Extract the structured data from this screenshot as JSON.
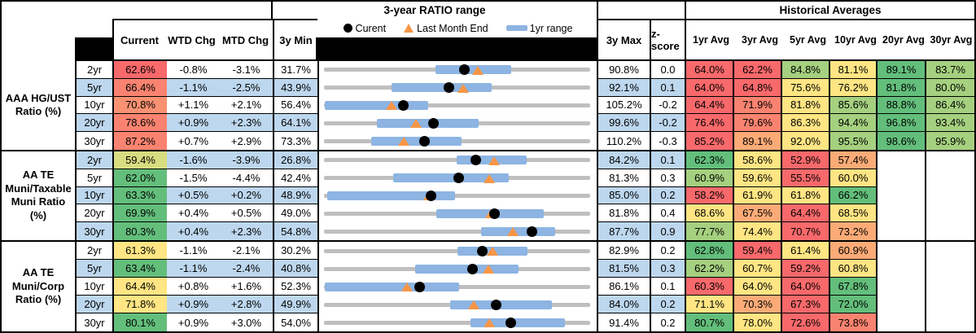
{
  "header": {
    "range_band": "3-year RATIO range",
    "averages_band": "Historical Averages"
  },
  "columns": {
    "current": "Current",
    "wtd": "WTD Chg",
    "mtd": "MTD Chg",
    "min": "3y Min",
    "max": "3y Max",
    "z": "z-score",
    "avgs": [
      "1yr Avg",
      "3yr Avg",
      "5yr Avg",
      "10yr Avg",
      "20yr Avg",
      "30yr Avg"
    ]
  },
  "legend": {
    "current": "Curent",
    "last_month": "Last Month End",
    "range": "1yr range"
  },
  "palette": {
    "R": "#f8696b",
    "RO": "#f98370",
    "SO": "#f99272",
    "O": "#fcab77",
    "Y": "#ffe583",
    "YG": "#d8dd81",
    "LG": "#a5d07f",
    "G": "#63be7b",
    "stripe": "#bdd7ee",
    "range_bar": "#8db4e2",
    "track": "#bfbfbf",
    "triangle": "#f79646",
    "dot": "#000000"
  },
  "groups": [
    {
      "label_lines": [
        "AAA HG/UST",
        "Ratio (%)"
      ],
      "rows": [
        {
          "tenor": "2yr",
          "cur": 62.6,
          "curc": "R",
          "wtd": -0.8,
          "mtd": -3.1,
          "min": 31.7,
          "max": 90.8,
          "z": "0.0",
          "band": [
            56.3,
            73.1
          ],
          "avgs": [
            [
              64.0,
              "R"
            ],
            [
              62.2,
              "R"
            ],
            [
              84.8,
              "LG"
            ],
            [
              81.1,
              "Y"
            ],
            [
              89.1,
              "G"
            ],
            [
              83.7,
              "LG"
            ]
          ]
        },
        {
          "tenor": "5yr",
          "cur": 66.4,
          "curc": "RO",
          "wtd": -1.1,
          "mtd": -2.5,
          "min": 43.9,
          "max": 92.1,
          "z": "0.1",
          "band": [
            56.0,
            74.1
          ],
          "avgs": [
            [
              64.0,
              "R"
            ],
            [
              64.8,
              "R"
            ],
            [
              75.6,
              "Y"
            ],
            [
              76.2,
              "Y"
            ],
            [
              81.8,
              "G"
            ],
            [
              80.0,
              "LG"
            ]
          ]
        },
        {
          "tenor": "10yr",
          "cur": 70.8,
          "curc": "SO",
          "wtd": 1.1,
          "mtd": 2.1,
          "min": 56.4,
          "max": 105.2,
          "z": "-0.2",
          "band": [
            56.5,
            75.4
          ],
          "avgs": [
            [
              64.4,
              "R"
            ],
            [
              71.9,
              "RO"
            ],
            [
              81.8,
              "Y"
            ],
            [
              85.6,
              "LG"
            ],
            [
              88.8,
              "G"
            ],
            [
              86.4,
              "LG"
            ]
          ]
        },
        {
          "tenor": "20yr",
          "cur": 78.6,
          "curc": "RO",
          "wtd": 0.9,
          "mtd": 2.3,
          "min": 64.1,
          "max": 99.6,
          "z": "-0.2",
          "band": [
            71.1,
            84.6
          ],
          "avgs": [
            [
              76.4,
              "R"
            ],
            [
              79.6,
              "RO"
            ],
            [
              86.3,
              "Y"
            ],
            [
              94.4,
              "LG"
            ],
            [
              96.8,
              "G"
            ],
            [
              93.4,
              "LG"
            ]
          ]
        },
        {
          "tenor": "30yr",
          "cur": 87.2,
          "curc": "RO",
          "wtd": 0.7,
          "mtd": 2.9,
          "min": 73.3,
          "max": 110.2,
          "z": "-0.3",
          "band": [
            79.8,
            92.2
          ],
          "avgs": [
            [
              85.2,
              "R"
            ],
            [
              89.1,
              "O"
            ],
            [
              92.0,
              "Y"
            ],
            [
              95.5,
              "LG"
            ],
            [
              98.6,
              "G"
            ],
            [
              95.9,
              "LG"
            ]
          ]
        }
      ]
    },
    {
      "label_lines": [
        "AA TE",
        "Muni/Taxable",
        "Muni Ratio",
        "(%)"
      ],
      "rows": [
        {
          "tenor": "2yr",
          "cur": 59.4,
          "curc": "YG",
          "wtd": -1.6,
          "mtd": -3.9,
          "min": 26.8,
          "max": 84.2,
          "z": "0.1",
          "band": [
            55.3,
            70.2
          ],
          "avgs": [
            [
              62.3,
              "G"
            ],
            [
              58.6,
              "Y"
            ],
            [
              52.9,
              "R"
            ],
            [
              57.4,
              "O"
            ],
            null,
            null
          ]
        },
        {
          "tenor": "5yr",
          "cur": 62.0,
          "curc": "G",
          "wtd": -1.5,
          "mtd": -4.4,
          "min": 42.4,
          "max": 81.3,
          "z": "0.3",
          "band": [
            52.4,
            69.3
          ],
          "avgs": [
            [
              60.9,
              "LG"
            ],
            [
              59.6,
              "Y"
            ],
            [
              55.5,
              "R"
            ],
            [
              60.0,
              "Y"
            ],
            null,
            null
          ]
        },
        {
          "tenor": "10yr",
          "cur": 63.3,
          "curc": "G",
          "wtd": 0.5,
          "mtd": 0.2,
          "min": 48.9,
          "max": 85.0,
          "z": "0.2",
          "band": [
            49.3,
            66.6
          ],
          "avgs": [
            [
              58.2,
              "R"
            ],
            [
              61.9,
              "Y"
            ],
            [
              61.8,
              "Y"
            ],
            [
              66.2,
              "G"
            ],
            null,
            null
          ]
        },
        {
          "tenor": "20yr",
          "cur": 69.9,
          "curc": "G",
          "wtd": 0.4,
          "mtd": 0.5,
          "min": 49.0,
          "max": 81.8,
          "z": "0.4",
          "band": [
            62.8,
            75.9
          ],
          "avgs": [
            [
              68.6,
              "Y"
            ],
            [
              67.5,
              "O"
            ],
            [
              64.4,
              "R"
            ],
            [
              68.5,
              "Y"
            ],
            null,
            null
          ]
        },
        {
          "tenor": "30yr",
          "cur": 80.3,
          "curc": "G",
          "wtd": 0.4,
          "mtd": 2.3,
          "min": 54.8,
          "max": 87.7,
          "z": "0.9",
          "band": [
            74.1,
            83.2
          ],
          "avgs": [
            [
              77.7,
              "LG"
            ],
            [
              74.4,
              "Y"
            ],
            [
              70.7,
              "R"
            ],
            [
              73.2,
              "O"
            ],
            null,
            null
          ]
        }
      ]
    },
    {
      "label_lines": [
        "AA TE",
        "Muni/Corp",
        "Ratio (%)"
      ],
      "rows": [
        {
          "tenor": "2yr",
          "cur": 61.3,
          "curc": "Y",
          "wtd": -1.1,
          "mtd": -2.1,
          "min": 30.2,
          "max": 82.9,
          "z": "0.2",
          "band": [
            56.4,
            70.3
          ],
          "avgs": [
            [
              62.8,
              "G"
            ],
            [
              59.4,
              "R"
            ],
            [
              61.4,
              "Y"
            ],
            [
              60.9,
              "O"
            ],
            null,
            null
          ]
        },
        {
          "tenor": "5yr",
          "cur": 63.4,
          "curc": "G",
          "wtd": -1.1,
          "mtd": -2.4,
          "min": 40.8,
          "max": 81.5,
          "z": "0.3",
          "band": [
            54.6,
            70.4
          ],
          "avgs": [
            [
              62.2,
              "LG"
            ],
            [
              60.7,
              "Y"
            ],
            [
              59.2,
              "R"
            ],
            [
              60.8,
              "Y"
            ],
            null,
            null
          ]
        },
        {
          "tenor": "10yr",
          "cur": 64.4,
          "curc": "Y",
          "wtd": 0.8,
          "mtd": 1.6,
          "min": 52.3,
          "max": 86.1,
          "z": "0.1",
          "band": [
            52.4,
            69.4
          ],
          "avgs": [
            [
              60.3,
              "R"
            ],
            [
              64.0,
              "Y"
            ],
            [
              64.0,
              "R"
            ],
            [
              67.8,
              "G"
            ],
            null,
            null
          ]
        },
        {
          "tenor": "20yr",
          "cur": 71.8,
          "curc": "Y",
          "wtd": 0.9,
          "mtd": 2.8,
          "min": 49.9,
          "max": 84.0,
          "z": "0.2",
          "band": [
            66.0,
            78.9
          ],
          "avgs": [
            [
              71.1,
              "Y"
            ],
            [
              70.3,
              "O"
            ],
            [
              67.3,
              "R"
            ],
            [
              72.0,
              "G"
            ],
            null,
            null
          ]
        },
        {
          "tenor": "30yr",
          "cur": 80.1,
          "curc": "G",
          "wtd": 0.9,
          "mtd": 3.0,
          "min": 54.0,
          "max": 91.4,
          "z": "0.2",
          "band": [
            74.5,
            87.7
          ],
          "avgs": [
            [
              80.7,
              "G"
            ],
            [
              78.0,
              "Y"
            ],
            [
              72.6,
              "R"
            ],
            [
              73.8,
              "RO"
            ],
            null,
            null
          ]
        }
      ]
    }
  ],
  "chart_data": {
    "type": "scatter",
    "title": "3-year RATIO range",
    "legend": [
      "Curent (dot)",
      "Last Month End (triangle)",
      "1yr range (blue bar)"
    ],
    "note": "Each row is a dot-range plot: gray track spans 3y Min to 3y Max, blue bar is the 1yr range, black dot is current, orange triangle is last month end (current minus MTD change).",
    "rows": [
      {
        "series": "AAA HG/UST",
        "tenor": "2yr",
        "min3y": 31.7,
        "max3y": 90.8,
        "current": 62.6,
        "last_month_end": 65.7,
        "range_1yr": [
          56.3,
          73.1
        ]
      },
      {
        "series": "AAA HG/UST",
        "tenor": "5yr",
        "min3y": 43.9,
        "max3y": 92.1,
        "current": 66.4,
        "last_month_end": 68.9,
        "range_1yr": [
          56.0,
          74.1
        ]
      },
      {
        "series": "AAA HG/UST",
        "tenor": "10yr",
        "min3y": 56.4,
        "max3y": 105.2,
        "current": 70.8,
        "last_month_end": 68.7,
        "range_1yr": [
          56.5,
          75.4
        ]
      },
      {
        "series": "AAA HG/UST",
        "tenor": "20yr",
        "min3y": 64.1,
        "max3y": 99.6,
        "current": 78.6,
        "last_month_end": 76.3,
        "range_1yr": [
          71.1,
          84.6
        ]
      },
      {
        "series": "AAA HG/UST",
        "tenor": "30yr",
        "min3y": 73.3,
        "max3y": 110.2,
        "current": 87.2,
        "last_month_end": 84.3,
        "range_1yr": [
          79.8,
          92.2
        ]
      },
      {
        "series": "AA TE Muni/Taxable Muni",
        "tenor": "2yr",
        "min3y": 26.8,
        "max3y": 84.2,
        "current": 59.4,
        "last_month_end": 63.3,
        "range_1yr": [
          55.3,
          70.2
        ]
      },
      {
        "series": "AA TE Muni/Taxable Muni",
        "tenor": "5yr",
        "min3y": 42.4,
        "max3y": 81.3,
        "current": 62.0,
        "last_month_end": 66.4,
        "range_1yr": [
          52.4,
          69.3
        ]
      },
      {
        "series": "AA TE Muni/Taxable Muni",
        "tenor": "10yr",
        "min3y": 48.9,
        "max3y": 85.0,
        "current": 63.3,
        "last_month_end": 63.1,
        "range_1yr": [
          49.3,
          66.6
        ]
      },
      {
        "series": "AA TE Muni/Taxable Muni",
        "tenor": "20yr",
        "min3y": 49.0,
        "max3y": 81.8,
        "current": 69.9,
        "last_month_end": 69.4,
        "range_1yr": [
          62.8,
          75.9
        ]
      },
      {
        "series": "AA TE Muni/Taxable Muni",
        "tenor": "30yr",
        "min3y": 54.8,
        "max3y": 87.7,
        "current": 80.3,
        "last_month_end": 78.0,
        "range_1yr": [
          74.1,
          83.2
        ]
      },
      {
        "series": "AA TE Muni/Corp",
        "tenor": "2yr",
        "min3y": 30.2,
        "max3y": 82.9,
        "current": 61.3,
        "last_month_end": 63.4,
        "range_1yr": [
          56.4,
          70.3
        ]
      },
      {
        "series": "AA TE Muni/Corp",
        "tenor": "5yr",
        "min3y": 40.8,
        "max3y": 81.5,
        "current": 63.4,
        "last_month_end": 65.8,
        "range_1yr": [
          54.6,
          70.4
        ]
      },
      {
        "series": "AA TE Muni/Corp",
        "tenor": "10yr",
        "min3y": 52.3,
        "max3y": 86.1,
        "current": 64.4,
        "last_month_end": 62.8,
        "range_1yr": [
          52.4,
          69.4
        ]
      },
      {
        "series": "AA TE Muni/Corp",
        "tenor": "20yr",
        "min3y": 49.9,
        "max3y": 84.0,
        "current": 71.8,
        "last_month_end": 69.0,
        "range_1yr": [
          66.0,
          78.9
        ]
      },
      {
        "series": "AA TE Muni/Corp",
        "tenor": "30yr",
        "min3y": 54.0,
        "max3y": 91.4,
        "current": 80.1,
        "last_month_end": 77.1,
        "range_1yr": [
          74.5,
          87.7
        ]
      }
    ]
  }
}
